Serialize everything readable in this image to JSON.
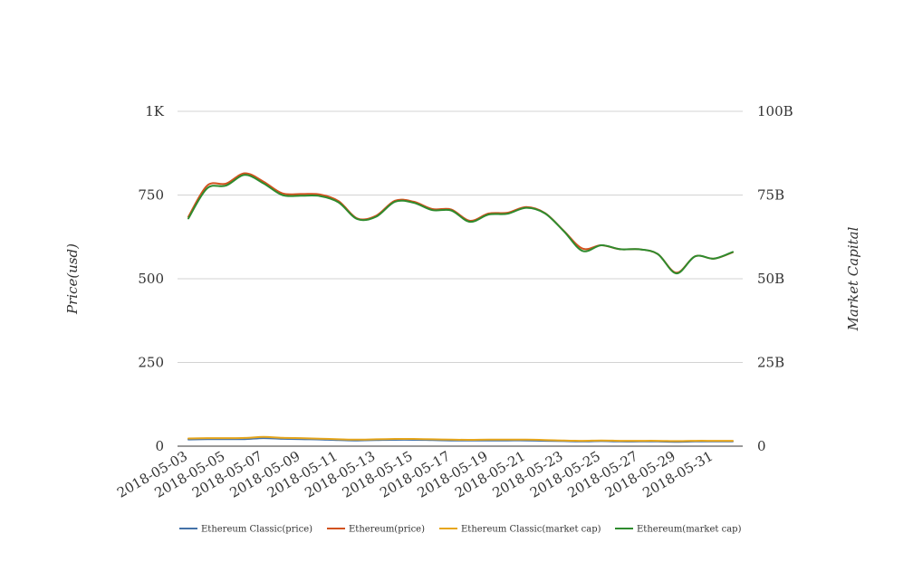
{
  "chart_data": {
    "type": "line",
    "x": [
      "2018-05-03",
      "2018-05-04",
      "2018-05-05",
      "2018-05-06",
      "2018-05-07",
      "2018-05-08",
      "2018-05-09",
      "2018-05-10",
      "2018-05-11",
      "2018-05-12",
      "2018-05-13",
      "2018-05-14",
      "2018-05-15",
      "2018-05-16",
      "2018-05-17",
      "2018-05-18",
      "2018-05-19",
      "2018-05-20",
      "2018-05-21",
      "2018-05-22",
      "2018-05-23",
      "2018-05-24",
      "2018-05-25",
      "2018-05-26",
      "2018-05-27",
      "2018-05-28",
      "2018-05-29",
      "2018-05-30",
      "2018-05-31",
      "2018-06-01"
    ],
    "x_tick_labels": [
      "2018-05-03",
      "2018-05-05",
      "2018-05-07",
      "2018-05-09",
      "2018-05-11",
      "2018-05-13",
      "2018-05-15",
      "2018-05-17",
      "2018-05-19",
      "2018-05-21",
      "2018-05-23",
      "2018-05-25",
      "2018-05-27",
      "2018-05-29",
      "2018-05-31"
    ],
    "y_left": {
      "label": "Price(usd)",
      "ylim": [
        0,
        1000
      ],
      "tick_values": [
        0,
        250,
        500,
        750,
        1000
      ],
      "tick_labels": [
        "0",
        "250",
        "500",
        "750",
        "1K"
      ]
    },
    "y_right": {
      "label": "Market Capital",
      "ylim": [
        0,
        100000000000
      ],
      "tick_values": [
        0,
        25000000000,
        50000000000,
        75000000000,
        100000000000
      ],
      "tick_labels": [
        "0",
        "25B",
        "50B",
        "75B",
        "100B"
      ]
    },
    "grid": true,
    "legend_position": "bottom",
    "series": [
      {
        "name": "Ethereum Classic(price)",
        "axis": "left",
        "color": "#4472a8",
        "values": [
          20,
          21,
          21,
          21,
          24,
          22,
          21,
          20,
          18,
          17,
          18,
          19,
          19,
          18,
          17,
          17,
          17,
          17,
          17,
          16,
          15,
          14,
          15,
          14,
          14,
          14,
          13,
          14,
          14,
          14
        ]
      },
      {
        "name": "Ethereum(price)",
        "axis": "left",
        "color": "#d2521f",
        "values": [
          685,
          778,
          784,
          815,
          790,
          755,
          753,
          752,
          732,
          680,
          688,
          733,
          730,
          708,
          707,
          673,
          695,
          697,
          714,
          696,
          643,
          590,
          600,
          588,
          588,
          574,
          518,
          567,
          560,
          579
        ]
      },
      {
        "name": "Ethereum Classic(market cap)",
        "axis": "right",
        "color": "#e6a61c",
        "values": [
          2300000000,
          2400000000,
          2400000000,
          2450000000,
          2750000000,
          2500000000,
          2400000000,
          2250000000,
          2050000000,
          1950000000,
          2050000000,
          2150000000,
          2150000000,
          2050000000,
          1950000000,
          1900000000,
          1950000000,
          1950000000,
          1950000000,
          1850000000,
          1700000000,
          1600000000,
          1700000000,
          1600000000,
          1600000000,
          1600000000,
          1500000000,
          1600000000,
          1600000000,
          1600000000
        ]
      },
      {
        "name": "Ethereum(market cap)",
        "axis": "right",
        "color": "#2e8b2e",
        "values": [
          68000000000,
          77000000000,
          77800000000,
          81000000000,
          78500000000,
          75000000000,
          74800000000,
          74700000000,
          72800000000,
          67800000000,
          68500000000,
          73000000000,
          72700000000,
          70500000000,
          70400000000,
          67000000000,
          69200000000,
          69400000000,
          71200000000,
          69500000000,
          64200000000,
          58300000000,
          60000000000,
          58800000000,
          58800000000,
          57400000000,
          51600000000,
          56700000000,
          56000000000,
          58000000000
        ]
      }
    ]
  }
}
